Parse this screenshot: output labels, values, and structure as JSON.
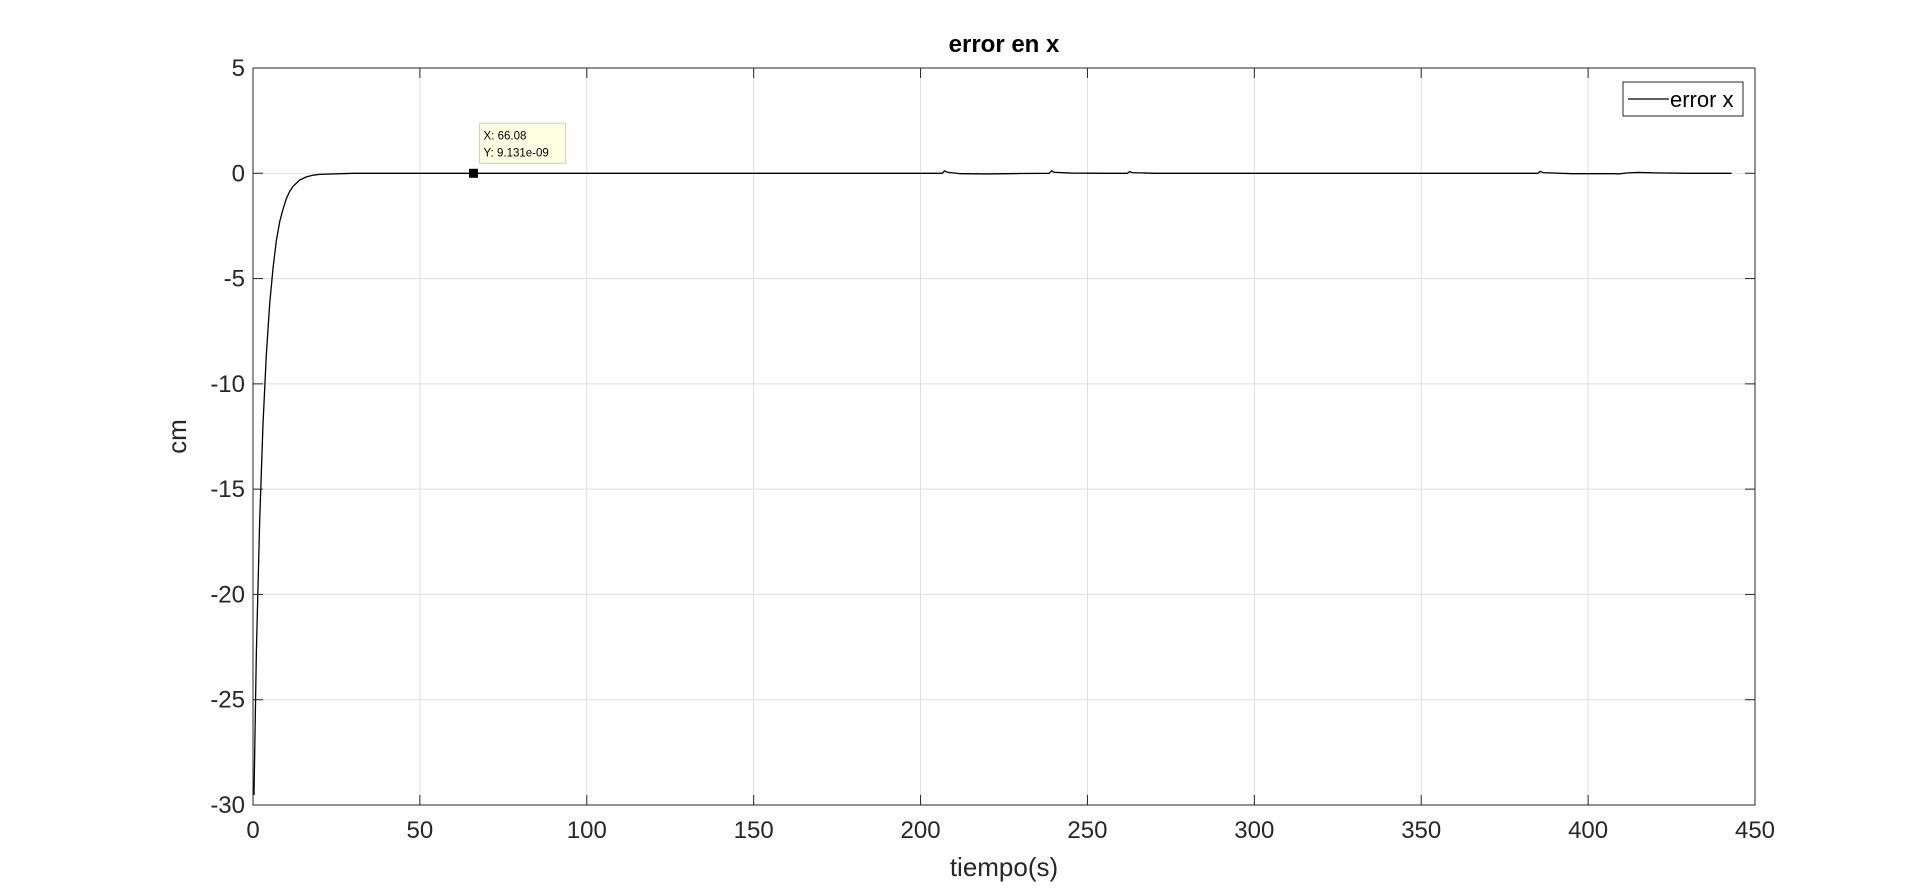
{
  "chart_data": {
    "type": "line",
    "title": "error en x",
    "xlabel": "tiempo(s)",
    "ylabel": "cm",
    "xlim": [
      0,
      450
    ],
    "ylim": [
      -30,
      5
    ],
    "xticks": [
      0,
      50,
      100,
      150,
      200,
      250,
      300,
      350,
      400,
      450
    ],
    "yticks": [
      -30,
      -25,
      -20,
      -15,
      -10,
      -5,
      0,
      5
    ],
    "grid": true,
    "legend_position": "top-right",
    "series": [
      {
        "name": "error x",
        "color": "#000000",
        "x": [
          0,
          0.3,
          1,
          2,
          3,
          4,
          5,
          6,
          7,
          8,
          9,
          10,
          11,
          12,
          14,
          16,
          18,
          20,
          30,
          50,
          66.08,
          100,
          150,
          200,
          206.5,
          207.2,
          208,
          212,
          220,
          230,
          238.5,
          239.3,
          240,
          245,
          255,
          262,
          262.6,
          263.5,
          270,
          300,
          350,
          385,
          385.6,
          386.5,
          395,
          405,
          408,
          409,
          412,
          415,
          420,
          430,
          443
        ],
        "y": [
          -29.2,
          -29.5,
          -22.8,
          -16.5,
          -11.9,
          -8.6,
          -6.2,
          -4.5,
          -3.2,
          -2.3,
          -1.7,
          -1.2,
          -0.86,
          -0.62,
          -0.32,
          -0.17,
          -0.09,
          -0.05,
          0,
          0,
          0,
          0,
          0,
          0,
          0,
          0.12,
          0.05,
          -0.02,
          -0.03,
          -0.01,
          0,
          0.12,
          0.05,
          0.01,
          0,
          0,
          0.08,
          0.03,
          0,
          0,
          0,
          0,
          0.09,
          0.03,
          -0.02,
          -0.02,
          -0.02,
          -0.03,
          0.02,
          0.04,
          0.02,
          0,
          0
        ]
      }
    ],
    "datatip": {
      "x": 66.08,
      "y": 9.131e-09,
      "x_text": "X: 66.08",
      "y_text": "Y: 9.131e-09"
    },
    "colors": {
      "background": "#ffffff",
      "axes": "#262626",
      "grid": "#dfdfdf",
      "datatip_fill": "#ffffe1",
      "datatip_border": "#d0d0b0"
    }
  }
}
